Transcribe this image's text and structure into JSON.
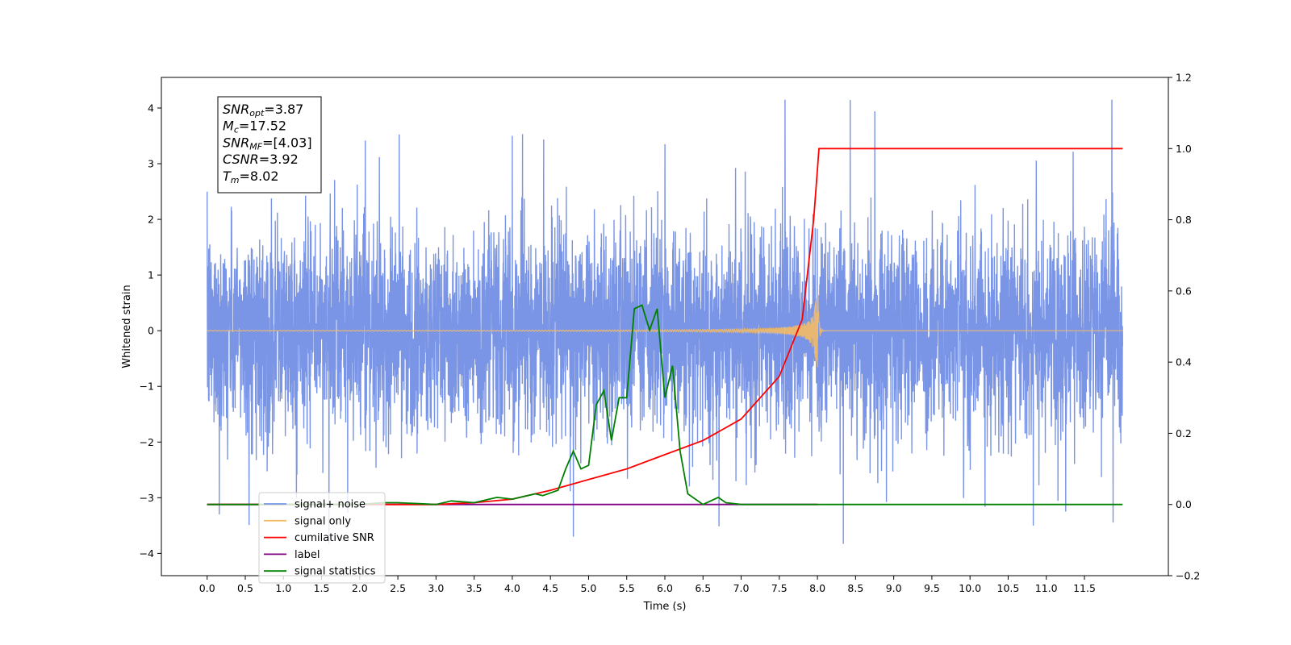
{
  "chart_data": {
    "type": "line",
    "xlabel": "Time (s)",
    "ylabel": "Whitened strain",
    "xlim": [
      -0.6,
      12.6
    ],
    "ylim": [
      -4.4,
      4.55
    ],
    "ylim_right": [
      -0.2,
      1.2
    ],
    "xticks": [
      0.0,
      0.5,
      1.0,
      1.5,
      2.0,
      2.5,
      3.0,
      3.5,
      4.0,
      4.5,
      5.0,
      5.5,
      6.0,
      6.5,
      7.0,
      7.5,
      8.0,
      8.5,
      9.0,
      9.5,
      10.0,
      10.5,
      11.0,
      11.5
    ],
    "xtick_labels": [
      "0.0",
      "0.5",
      "1.0",
      "1.5",
      "2.0",
      "2.5",
      "3.0",
      "3.5",
      "4.0",
      "4.5",
      "5.0",
      "5.5",
      "6.0",
      "6.5",
      "7.0",
      "7.5",
      "8.0",
      "8.5",
      "9.0",
      "9.5",
      "10.0",
      "10.5",
      "11.0",
      "11.5"
    ],
    "yticks": [
      -4,
      -3,
      -2,
      -1,
      0,
      1,
      2,
      3,
      4
    ],
    "ytick_labels": [
      "−4",
      "−3",
      "−2",
      "−1",
      "0",
      "1",
      "2",
      "3",
      "4"
    ],
    "yticks_right": [
      -0.2,
      0.0,
      0.2,
      0.4,
      0.6,
      0.8,
      1.0,
      1.2
    ],
    "ytick_labels_right": [
      "−0.2",
      "0.0",
      "0.2",
      "0.4",
      "0.6",
      "0.8",
      "1.0",
      "1.2"
    ],
    "info_box": [
      {
        "main": "SNR",
        "sub": "opt",
        "value": "=3.87"
      },
      {
        "main": "M",
        "sub": "c",
        "value": "=17.52"
      },
      {
        "main": "SNR",
        "sub": "MF",
        "value": "=[4.03]"
      },
      {
        "main": "CSNR",
        "sub": "",
        "value": "=3.92"
      },
      {
        "main": "T",
        "sub": "m",
        "value": "=8.02"
      }
    ],
    "legend_placement": "lower-left",
    "grid": false,
    "series": [
      {
        "name": "signal+ noise",
        "color": "#7a95e6",
        "axis": "left",
        "description_stats": {
          "x_range": [
            0.0,
            12.0
          ],
          "noise_sigma": 0.9,
          "max": 4.15,
          "min": -3.83
        }
      },
      {
        "name": "signal only",
        "color": "#f4bb66",
        "axis": "left",
        "chirp": {
          "start": 0.0,
          "merger": 8.02,
          "end": 12.0,
          "max_amp": 0.8,
          "min_amp": -0.65
        }
      },
      {
        "name": "cumilative SNR",
        "color": "#ff0000",
        "axis": "right",
        "x": [
          0.0,
          1.0,
          2.0,
          3.0,
          3.5,
          4.0,
          4.5,
          5.0,
          5.5,
          6.0,
          6.5,
          7.0,
          7.5,
          7.8,
          7.95,
          8.02,
          12.0
        ],
        "y": [
          0.0,
          0.0,
          0.0,
          0.0,
          0.005,
          0.015,
          0.04,
          0.07,
          0.1,
          0.14,
          0.18,
          0.24,
          0.36,
          0.52,
          0.8,
          1.0,
          1.0
        ]
      },
      {
        "name": "label",
        "color": "#800080",
        "axis": "right",
        "x": [
          0.0,
          8.0
        ],
        "y": [
          0.0,
          0.0
        ]
      },
      {
        "name": "signal statistics",
        "color": "#008000",
        "axis": "right",
        "x": [
          0.0,
          2.0,
          2.3,
          2.5,
          3.0,
          3.2,
          3.5,
          3.8,
          4.0,
          4.3,
          4.4,
          4.6,
          4.7,
          4.8,
          4.9,
          5.0,
          5.1,
          5.2,
          5.3,
          5.4,
          5.5,
          5.6,
          5.7,
          5.8,
          5.9,
          6.0,
          6.1,
          6.2,
          6.3,
          6.5,
          6.7,
          6.8,
          7.0,
          8.0,
          12.0
        ],
        "y": [
          0.0,
          0.0,
          0.005,
          0.005,
          0.0,
          0.01,
          0.005,
          0.02,
          0.015,
          0.03,
          0.025,
          0.04,
          0.1,
          0.15,
          0.1,
          0.11,
          0.28,
          0.32,
          0.18,
          0.3,
          0.3,
          0.55,
          0.56,
          0.49,
          0.55,
          0.3,
          0.39,
          0.15,
          0.03,
          0.0,
          0.02,
          0.005,
          0.0,
          0.0,
          0.0
        ]
      }
    ],
    "legend_entries": [
      {
        "label": "signal+ noise",
        "color": "#7a95e6"
      },
      {
        "label": "signal only",
        "color": "#f4bb66"
      },
      {
        "label": "cumilative SNR",
        "color": "#ff0000"
      },
      {
        "label": "label",
        "color": "#800080"
      },
      {
        "label": "signal statistics",
        "color": "#008000"
      }
    ]
  }
}
